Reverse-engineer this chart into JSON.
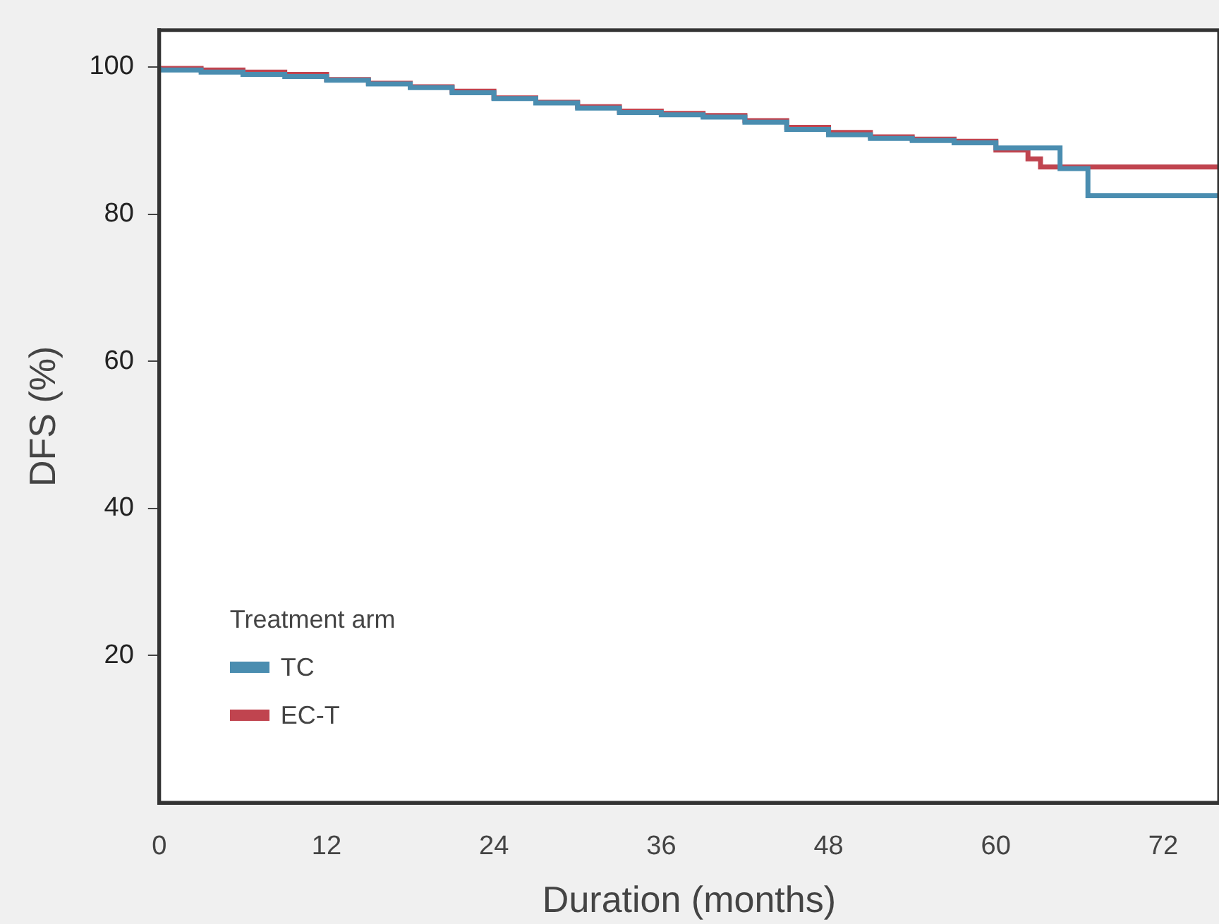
{
  "chart_data": {
    "type": "step",
    "xlabel": "Duration (months)",
    "ylabel": "DFS (%)",
    "legend_title": "Treatment arm",
    "legend": "bottom left",
    "grid": false,
    "xlim": [
      0,
      76
    ],
    "xticks": [
      0,
      12,
      24,
      36,
      48,
      60,
      72
    ],
    "ylim": [
      0,
      105
    ],
    "yticks": [
      20,
      40,
      60,
      80,
      100
    ],
    "series": [
      {
        "name": "TC",
        "color": "#4a8db0",
        "x": [
          0,
          3,
          6,
          9,
          12,
          15,
          18,
          21,
          24,
          27,
          30,
          33,
          36,
          39,
          42,
          45,
          48,
          51,
          54,
          57,
          60,
          64.6,
          66.6,
          72.2,
          76
        ],
        "values": [
          100,
          99.6,
          99.3,
          99.0,
          98.7,
          98.2,
          97.7,
          97.2,
          96.5,
          95.7,
          95.1,
          94.4,
          93.8,
          93.5,
          93.2,
          92.5,
          91.5,
          90.8,
          90.3,
          90.0,
          89.7,
          89.0,
          86.2,
          82.5,
          82.5
        ]
      },
      {
        "name": "EC-T",
        "color": "#c0444f",
        "x": [
          0,
          3,
          6,
          9,
          12,
          15,
          18,
          21,
          24,
          27,
          30,
          33,
          36,
          39,
          42,
          45,
          48,
          51,
          54,
          57,
          60,
          62.3,
          63.2,
          65,
          76
        ],
        "values": [
          100,
          99.8,
          99.6,
          99.3,
          99.0,
          98.3,
          97.8,
          97.3,
          96.7,
          95.8,
          95.2,
          94.6,
          94.0,
          93.7,
          93.4,
          92.7,
          91.8,
          91.1,
          90.5,
          90.2,
          89.9,
          88.7,
          87.5,
          86.4,
          86.4
        ]
      }
    ]
  }
}
